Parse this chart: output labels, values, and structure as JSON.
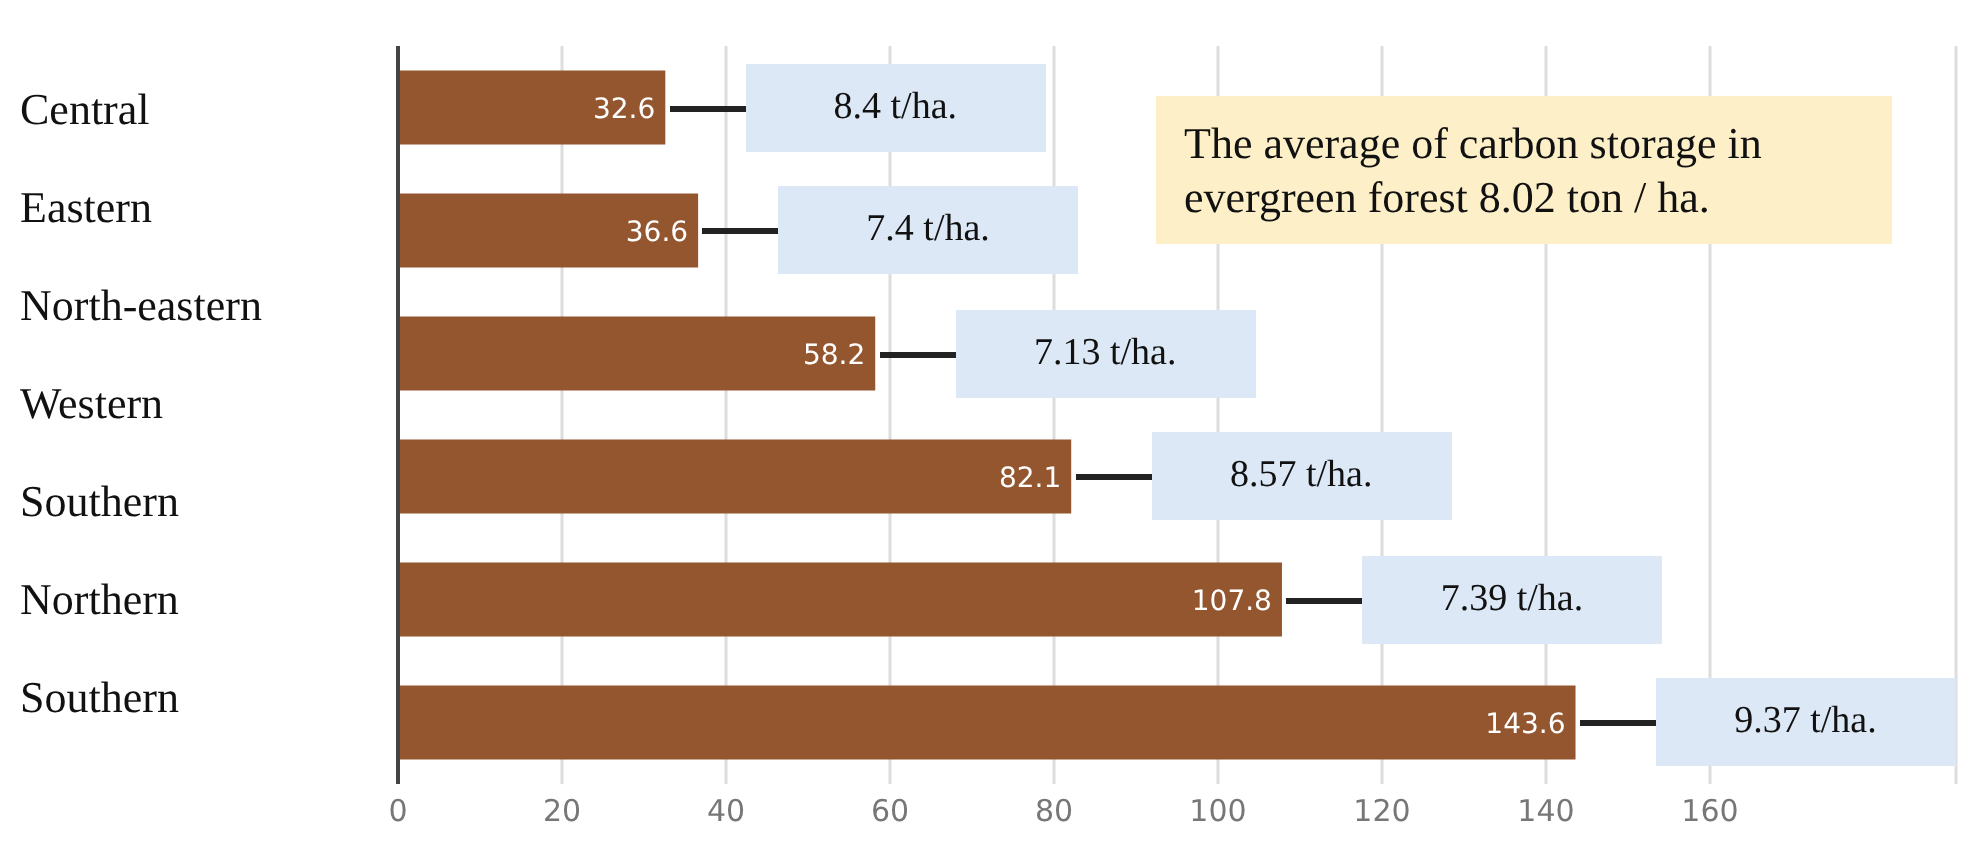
{
  "chart_data": {
    "type": "bar",
    "orientation": "horizontal",
    "categories": [
      null,
      null,
      null,
      null,
      null,
      null
    ],
    "values": [
      32.6,
      36.6,
      58.2,
      82.1,
      107.8,
      143.6
    ],
    "color": "#94562e",
    "data_labels": true,
    "xlim": [
      0,
      190
    ],
    "xticks": [
      0,
      20,
      40,
      60,
      80,
      100,
      120,
      140,
      160
    ],
    "grid": "x",
    "annotations": [
      "The average of carbon storage in evergreen forest 8.02 ton / ha.",
      "Central",
      "Eastern",
      "North-eastern",
      "Western",
      "Southern",
      "Northern",
      "Southern",
      "8.4 t/ha.",
      "7.4 t/ha.",
      "7.13 t/ha.",
      "8.57 t/ha.",
      "7.39 t/ha.",
      "9.37 t/ha."
    ]
  }
}
